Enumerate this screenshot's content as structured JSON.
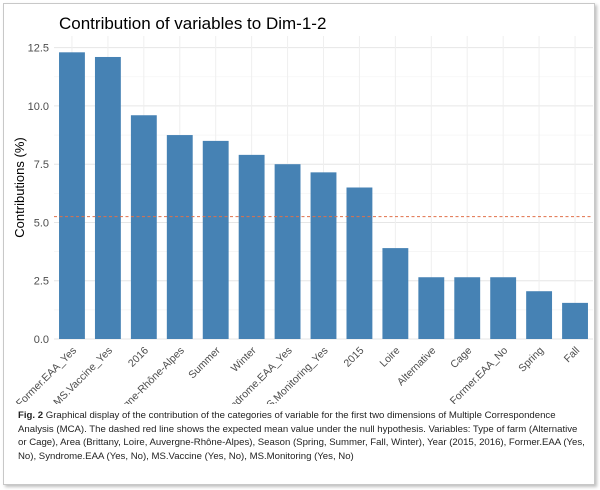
{
  "chart_data": {
    "type": "bar",
    "title": "Contribution of variables to Dim-1-2",
    "xlabel": "",
    "ylabel": "Contributions (%)",
    "categories": [
      "Former.EAA_Yes",
      "MS.Vaccine_Yes",
      "2016",
      "Auvergne-Rhône-Alpes",
      "Summer",
      "Winter",
      "Syndrome.EAA_Yes",
      "MS.Monitoring_Yes",
      "2015",
      "Loire",
      "Alternative",
      "Cage",
      "Former.EAA_No",
      "Spring",
      "Fall"
    ],
    "values": [
      12.3,
      12.1,
      9.6,
      8.75,
      8.5,
      7.9,
      7.5,
      7.15,
      6.5,
      3.9,
      2.65,
      2.65,
      2.65,
      2.05,
      1.55
    ],
    "ylim": [
      0,
      13
    ],
    "yticks": [
      0.0,
      2.5,
      5.0,
      7.5,
      10.0,
      12.5
    ],
    "ytick_labels": [
      "0.0",
      "2.5",
      "5.0",
      "7.5",
      "10.0",
      "12.5"
    ],
    "reference_line": 5.25,
    "grid": true,
    "bar_color": "#4682b4",
    "reference_line_color": "#e0704a"
  },
  "caption": {
    "label": "Fig. 2",
    "text": "Graphical display of the contribution of the categories of variable for the first two dimensions of Multiple Correspondence Analysis (MCA). The dashed red line shows the expected mean value under the null hypothesis. Variables: Type of farm (Alternative or Cage), Area (Brittany, Loire, Auvergne-Rhône-Alpes), Season (Spring, Summer, Fall, Winter), Year (2015, 2016), Former.EAA (Yes, No), Syndrome.EAA (Yes, No), MS.Vaccine (Yes, No), MS.Monitoring (Yes, No)"
  }
}
